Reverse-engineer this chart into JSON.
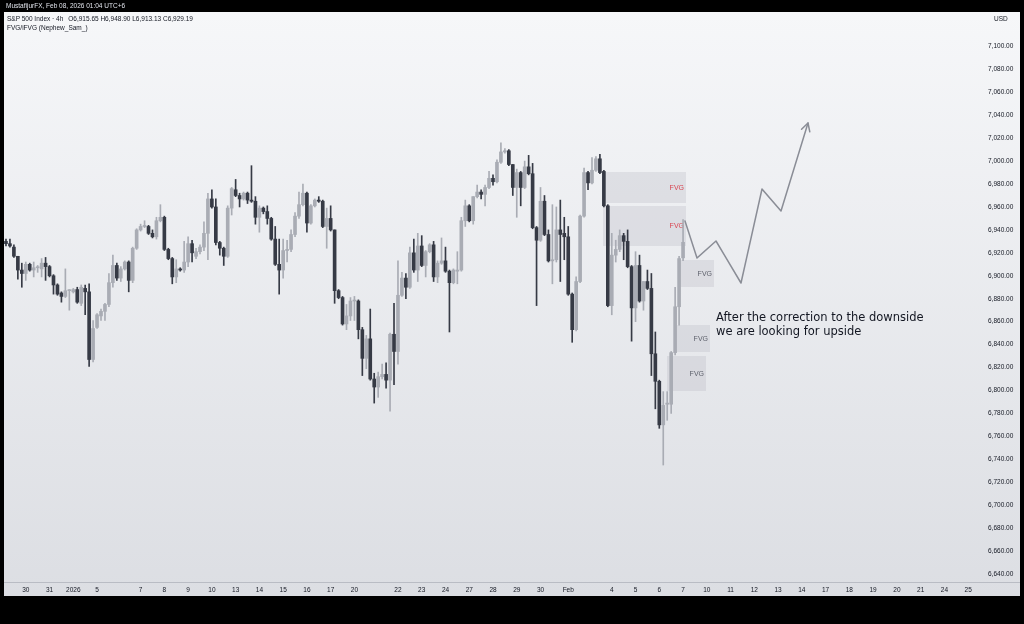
{
  "chart_data": {
    "type": "candlestick",
    "title": "S&P 500 Index · 4h",
    "subtitle": "O6,915.65 H6,948.90 L6,913.13 C6,929.19",
    "ylabel": "USD",
    "annotations": [
      "MustafijurFX, Feb 08, 2026 01:04 UTC+6",
      "FVG/iFVG (Nephew_Sam_)",
      "After the correction to the downside\nwe are looking for upside",
      "FVG",
      "FVG",
      "FVG",
      "FVG",
      "FVG"
    ],
    "categories": [
      null,
      null,
      null,
      null,
      null,
      "30",
      null,
      null,
      null,
      null,
      null,
      "31",
      null,
      null,
      null,
      null,
      null,
      "2026",
      null,
      null,
      null,
      null,
      null,
      "5",
      null,
      null,
      null,
      null,
      null,
      null,
      null,
      null,
      null,
      null,
      "7",
      null,
      null,
      null,
      null,
      null,
      "8",
      null,
      null,
      null,
      null,
      null,
      "9",
      null,
      null,
      null,
      null,
      null,
      "10",
      null,
      null,
      null,
      null,
      null,
      "13",
      null,
      null,
      null,
      null,
      null,
      "14",
      null,
      null,
      null,
      null,
      null,
      "15",
      null,
      null,
      null,
      null,
      null,
      "16",
      null,
      null,
      null,
      null,
      null,
      "17",
      null,
      null,
      null,
      null,
      null,
      "20",
      null,
      null,
      null,
      null,
      null,
      null,
      null,
      null,
      null,
      null,
      "22",
      null,
      null,
      null,
      null,
      null,
      "23",
      null,
      null,
      null,
      null,
      null,
      "24",
      null,
      null,
      null,
      null,
      null,
      "27",
      null,
      null,
      null,
      null,
      null,
      "28",
      null,
      null,
      null,
      null,
      null,
      "29",
      null,
      null,
      null,
      null,
      null,
      "30",
      null,
      null,
      null,
      null,
      null,
      null,
      "Feb",
      null,
      null,
      null,
      null,
      null,
      null,
      null,
      null,
      null,
      null,
      "4",
      null,
      null,
      null,
      null,
      null,
      "5",
      null,
      null,
      null,
      null,
      null,
      "6",
      null,
      null,
      null,
      null,
      null,
      "7",
      null,
      null,
      null,
      null,
      null,
      "10",
      null,
      null,
      null,
      null,
      null,
      "11",
      null,
      null,
      null,
      null,
      null,
      "12",
      null,
      null,
      null,
      null,
      null,
      "13",
      null,
      null,
      null,
      null,
      null,
      "14",
      null,
      null,
      null,
      null,
      null,
      "17",
      null,
      null,
      null,
      null,
      null,
      "18",
      null,
      null,
      null,
      null,
      null,
      "19",
      null,
      null,
      null,
      null,
      null,
      "20",
      null,
      null,
      null,
      null,
      null,
      "21",
      null,
      null,
      null,
      null,
      null,
      "24",
      null,
      null,
      null,
      null,
      null,
      "25",
      null,
      null,
      null
    ],
    "ohlc": [
      [
        6930,
        6932,
        6926,
        6928
      ],
      [
        6928,
        6932,
        6925,
        6926
      ],
      [
        6925,
        6927,
        6916,
        6917
      ],
      [
        6917,
        6917,
        6897,
        6905
      ],
      [
        6905,
        6911,
        6890,
        6902
      ],
      [
        6902,
        6912,
        6896,
        6910
      ],
      [
        6910,
        6911,
        6904,
        6905
      ],
      [
        6905,
        6912,
        6899,
        6907
      ],
      [
        6907,
        6909,
        6903,
        6907
      ],
      [
        6906,
        6915,
        6899,
        6911
      ],
      [
        6911,
        6916,
        6896,
        6908
      ],
      [
        6908,
        6909,
        6899,
        6900
      ],
      [
        6900,
        6901,
        6884,
        6892
      ],
      [
        6892,
        6893,
        6883,
        6884
      ],
      [
        6885,
        6886,
        6877,
        6882
      ],
      [
        6882,
        6906,
        6881,
        6887
      ],
      [
        6887,
        6888,
        6870,
        6887
      ],
      [
        6886,
        6889,
        6885,
        6888
      ],
      [
        6888,
        6890,
        6876,
        6877
      ],
      [
        6876,
        6892,
        6874,
        6890
      ],
      [
        6889,
        6892,
        6866,
        6886
      ],
      [
        6886,
        6893,
        6821,
        6827
      ],
      [
        6827,
        6861,
        6825,
        6854
      ],
      [
        6855,
        6867,
        6854,
        6866
      ],
      [
        6865,
        6871,
        6861,
        6869
      ],
      [
        6869,
        6876,
        6861,
        6875
      ],
      [
        6875,
        6902,
        6873,
        6894
      ],
      [
        6894,
        6918,
        6890,
        6909
      ],
      [
        6909,
        6911,
        6896,
        6898
      ],
      [
        6898,
        6908,
        6895,
        6906
      ],
      [
        6906,
        6913,
        6905,
        6912
      ],
      [
        6912,
        6913,
        6886,
        6896
      ],
      [
        6896,
        6925,
        6894,
        6924
      ],
      [
        6924,
        6941,
        6923,
        6940
      ],
      [
        6940,
        6945,
        6939,
        6943
      ],
      [
        6943,
        6948,
        6942,
        6943
      ],
      [
        6943,
        6944,
        6936,
        6937
      ],
      [
        6937,
        6940,
        6933,
        6934
      ],
      [
        6934,
        6951,
        6932,
        6948
      ],
      [
        6948,
        6962,
        6947,
        6951
      ],
      [
        6951,
        6952,
        6922,
        6923
      ],
      [
        6923,
        6924,
        6914,
        6915
      ],
      [
        6915,
        6916,
        6893,
        6899
      ],
      [
        6899,
        6914,
        6894,
        6906
      ],
      [
        6906,
        6907,
        6904,
        6905
      ],
      [
        6905,
        6930,
        6903,
        6912
      ],
      [
        6912,
        6934,
        6908,
        6928
      ],
      [
        6928,
        6931,
        6912,
        6920
      ],
      [
        6917,
        6924,
        6915,
        6921
      ],
      [
        6921,
        6927,
        6919,
        6925
      ],
      [
        6925,
        6947,
        6922,
        6937
      ],
      [
        6937,
        6972,
        6914,
        6967
      ],
      [
        6967,
        6975,
        6959,
        6960
      ],
      [
        6960,
        6967,
        6927,
        6929
      ],
      [
        6929,
        6930,
        6918,
        6924
      ],
      [
        6924,
        6925,
        6909,
        6917
      ],
      [
        6917,
        6961,
        6916,
        6959
      ],
      [
        6959,
        6977,
        6953,
        6976
      ],
      [
        6975,
        6984,
        6969,
        6970
      ],
      [
        6970,
        6972,
        6960,
        6967
      ],
      [
        6967,
        6973,
        6966,
        6972
      ],
      [
        6972,
        6973,
        6963,
        6966
      ],
      [
        6966,
        6996,
        6964,
        6965
      ],
      [
        6965,
        6969,
        6945,
        6951
      ],
      [
        6951,
        6961,
        6938,
        6959
      ],
      [
        6959,
        6960,
        6954,
        6956
      ],
      [
        6956,
        6961,
        6945,
        6950
      ],
      [
        6950,
        6951,
        6931,
        6932
      ],
      [
        6932,
        6943,
        6909,
        6910
      ],
      [
        6910,
        6932,
        6884,
        6905
      ],
      [
        6905,
        6932,
        6898,
        6922
      ],
      [
        6922,
        6931,
        6912,
        6923
      ],
      [
        6923,
        6940,
        6921,
        6936
      ],
      [
        6936,
        6955,
        6934,
        6952
      ],
      [
        6952,
        6973,
        6950,
        6962
      ],
      [
        6962,
        6980,
        6961,
        6972
      ],
      [
        6972,
        6973,
        6938,
        6946
      ],
      [
        6946,
        6962,
        6945,
        6961
      ],
      [
        6961,
        6967,
        6960,
        6966
      ],
      [
        6966,
        6969,
        6964,
        6965
      ],
      [
        6965,
        6966,
        6942,
        6943
      ],
      [
        6943,
        6959,
        6924,
        6950
      ],
      [
        6950,
        6961,
        6939,
        6940
      ],
      [
        6940,
        6940,
        6876,
        6887
      ],
      [
        6887,
        6888,
        6880,
        6881
      ],
      [
        6881,
        6882,
        6857,
        6858
      ],
      [
        6858,
        6875,
        6853,
        6865
      ],
      [
        6865,
        6881,
        6861,
        6878
      ],
      [
        6878,
        6882,
        6861,
        6878
      ],
      [
        6878,
        6879,
        6845,
        6853
      ],
      [
        6853,
        6855,
        6813,
        6828
      ],
      [
        6828,
        6848,
        6819,
        6845
      ],
      [
        6845,
        6871,
        6809,
        6810
      ],
      [
        6810,
        6815,
        6789,
        6803
      ],
      [
        6803,
        6816,
        6794,
        6812
      ],
      [
        6812,
        6823,
        6810,
        6814
      ],
      [
        6814,
        6824,
        6802,
        6809
      ],
      [
        6809,
        6850,
        6782,
        6849
      ],
      [
        6849,
        6876,
        6805,
        6834
      ],
      [
        6834,
        6913,
        6823,
        6883
      ],
      [
        6883,
        6903,
        6882,
        6898
      ],
      [
        6898,
        6902,
        6880,
        6890
      ],
      [
        6890,
        6925,
        6889,
        6920
      ],
      [
        6920,
        6932,
        6903,
        6905
      ],
      [
        6905,
        6937,
        6895,
        6926
      ],
      [
        6926,
        6935,
        6908,
        6909
      ],
      [
        6909,
        6922,
        6899,
        6921
      ],
      [
        6921,
        6928,
        6920,
        6927
      ],
      [
        6927,
        6930,
        6895,
        6899
      ],
      [
        6899,
        6913,
        6894,
        6911
      ],
      [
        6911,
        6933,
        6910,
        6913
      ],
      [
        6913,
        6925,
        6903,
        6904
      ],
      [
        6904,
        6905,
        6851,
        6894
      ],
      [
        6894,
        6906,
        6893,
        6905
      ],
      [
        6904,
        6921,
        6893,
        6905
      ],
      [
        6905,
        6951,
        6904,
        6948
      ],
      [
        6948,
        6966,
        6943,
        6961
      ],
      [
        6961,
        6962,
        6947,
        6948
      ],
      [
        6948,
        6969,
        6945,
        6969
      ],
      [
        6969,
        6979,
        6968,
        6973
      ],
      [
        6973,
        6975,
        6967,
        6971
      ],
      [
        6971,
        6979,
        6961,
        6977
      ],
      [
        6977,
        6991,
        6976,
        6985
      ],
      [
        6985,
        6988,
        6979,
        6982
      ],
      [
        6982,
        7001,
        6981,
        6999
      ],
      [
        6999,
        7016,
        6998,
        7008
      ],
      [
        7008,
        7011,
        7007,
        7009
      ],
      [
        7009,
        7010,
        6996,
        6997
      ],
      [
        6997,
        6997,
        6970,
        6977
      ],
      [
        6977,
        6993,
        6951,
        6990
      ],
      [
        6990,
        6991,
        6961,
        6977
      ],
      [
        6977,
        7000,
        6976,
        6995
      ],
      [
        6995,
        7005,
        6988,
        6989
      ],
      [
        6989,
        6998,
        6941,
        6942
      ],
      [
        6942,
        6943,
        6874,
        6931
      ],
      [
        6931,
        6977,
        6930,
        6965
      ],
      [
        6965,
        6970,
        6935,
        6936
      ],
      [
        6936,
        6940,
        6912,
        6913
      ],
      [
        6913,
        6962,
        6893,
        6914
      ],
      [
        6914,
        6960,
        6912,
        6940
      ],
      [
        6940,
        6966,
        6895,
        6936
      ],
      [
        6937,
        6951,
        6914,
        6934
      ],
      [
        6934,
        6943,
        6883,
        6884
      ],
      [
        6884,
        6885,
        6842,
        6853
      ],
      [
        6853,
        6899,
        6852,
        6895
      ],
      [
        6895,
        6953,
        6894,
        6952
      ],
      [
        6952,
        6994,
        6951,
        6990
      ],
      [
        6990,
        6991,
        6975,
        6981
      ],
      [
        6981,
        7003,
        6980,
        6992
      ],
      [
        6992,
        7004,
        6991,
        7002
      ],
      [
        7002,
        7006,
        6989,
        6990
      ],
      [
        6991,
        6992,
        6960,
        6961
      ],
      [
        6961,
        6962,
        6873,
        6874
      ],
      [
        6874,
        6937,
        6866,
        6918
      ],
      [
        6918,
        6931,
        6912,
        6923
      ],
      [
        6923,
        6940,
        6921,
        6935
      ],
      [
        6935,
        6937,
        6914,
        6930
      ],
      [
        6930,
        6940,
        6907,
        6908
      ],
      [
        6908,
        6909,
        6843,
        6872
      ],
      [
        6872,
        6921,
        6860,
        6909
      ],
      [
        6909,
        6918,
        6877,
        6878
      ],
      [
        6878,
        6895,
        6870,
        6895
      ],
      [
        6895,
        6905,
        6888,
        6889
      ],
      [
        6889,
        6902,
        6813,
        6832
      ],
      [
        6832,
        6851,
        6784,
        6808
      ],
      [
        6808,
        6809,
        6767,
        6770
      ],
      [
        6770,
        6799,
        6735,
        6787
      ],
      [
        6788,
        6799,
        6774,
        6789
      ],
      [
        6788,
        6834,
        6780,
        6833
      ],
      [
        6833,
        6890,
        6831,
        6873
      ],
      [
        6873,
        6917,
        6857,
        6915
      ],
      [
        6915.65,
        6948.9,
        6913.13,
        6929.19
      ],
      null,
      null,
      null,
      null,
      null,
      null,
      null,
      null,
      null,
      null,
      null,
      null,
      null,
      null,
      null,
      null,
      null,
      null,
      null,
      null,
      null,
      null,
      null,
      null,
      null,
      null,
      null,
      null,
      null,
      null,
      null,
      null,
      null,
      null,
      null,
      null,
      null,
      null,
      null,
      null,
      null,
      null,
      null,
      null,
      null,
      null,
      null,
      null,
      null,
      null,
      null,
      null,
      null,
      null,
      null,
      null,
      null,
      null,
      null,
      null,
      null,
      null,
      null,
      null,
      null,
      null,
      null,
      null,
      null,
      null,
      null,
      null,
      null,
      null,
      null
    ],
    "colors": [
      "#363a45",
      "#363a45",
      "#363a45",
      "#363a45",
      "#363a45",
      "#a9acb4",
      "#363a45",
      "#a9acb4",
      "#a9acb4",
      "#a9acb4",
      "#363a45",
      "#363a45",
      "#363a45",
      "#363a45",
      "#363a45",
      "#a9acb4",
      "#a9acb4",
      "#a9acb4",
      "#363a45",
      "#a9acb4",
      "#363a45",
      "#363a45",
      "#a9acb4",
      "#a9acb4",
      "#a9acb4",
      "#a9acb4",
      "#a9acb4",
      "#a9acb4",
      "#363a45",
      "#a9acb4",
      "#a9acb4",
      "#363a45",
      "#a9acb4",
      "#a9acb4",
      "#a9acb4",
      "#a9acb4",
      "#363a45",
      "#363a45",
      "#a9acb4",
      "#a9acb4",
      "#363a45",
      "#363a45",
      "#363a45",
      "#a9acb4",
      "#363a45",
      "#a9acb4",
      "#a9acb4",
      "#363a45",
      "#a9acb4",
      "#a9acb4",
      "#a9acb4",
      "#a9acb4",
      "#363a45",
      "#363a45",
      "#363a45",
      "#363a45",
      "#a9acb4",
      "#a9acb4",
      "#363a45",
      "#363a45",
      "#a9acb4",
      "#363a45",
      "#363a45",
      "#363a45",
      "#a9acb4",
      "#363a45",
      "#363a45",
      "#363a45",
      "#363a45",
      "#363a45",
      "#a9acb4",
      "#a9acb4",
      "#a9acb4",
      "#a9acb4",
      "#a9acb4",
      "#a9acb4",
      "#363a45",
      "#a9acb4",
      "#a9acb4",
      "#363a45",
      "#363a45",
      "#a9acb4",
      "#363a45",
      "#363a45",
      "#363a45",
      "#363a45",
      "#a9acb4",
      "#a9acb4",
      "#a9acb4",
      "#363a45",
      "#363a45",
      "#a9acb4",
      "#363a45",
      "#363a45",
      "#a9acb4",
      "#a9acb4",
      "#363a45",
      "#a9acb4",
      "#363a45",
      "#a9acb4",
      "#a9acb4",
      "#363a45",
      "#a9acb4",
      "#363a45",
      "#a9acb4",
      "#363a45",
      "#a9acb4",
      "#a9acb4",
      "#363a45",
      "#a9acb4",
      "#a9acb4",
      "#363a45",
      "#363a45",
      "#a9acb4",
      "#a9acb4",
      "#a9acb4",
      "#a9acb4",
      "#363a45",
      "#a9acb4",
      "#a9acb4",
      "#363a45",
      "#a9acb4",
      "#a9acb4",
      "#363a45",
      "#a9acb4",
      "#a9acb4",
      "#a9acb4",
      "#363a45",
      "#363a45",
      "#a9acb4",
      "#363a45",
      "#a9acb4",
      "#363a45",
      "#363a45",
      "#363a45",
      "#a9acb4",
      "#363a45",
      "#363a45",
      "#a9acb4",
      "#a9acb4",
      "#363a45",
      "#363a45",
      "#363a45",
      "#363a45",
      "#a9acb4",
      "#a9acb4",
      "#a9acb4",
      "#363a45",
      "#a9acb4",
      "#a9acb4",
      "#363a45",
      "#363a45",
      "#363a45",
      "#a9acb4",
      "#a9acb4",
      "#a9acb4",
      "#363a45",
      "#363a45",
      "#363a45",
      "#a9acb4",
      "#363a45",
      "#a9acb4",
      "#363a45",
      "#363a45",
      "#363a45",
      "#363a45",
      "#a9acb4",
      "#a9acb4",
      "#a9acb4",
      "#a9acb4",
      "#a9acb4",
      "#a9acb4",
      null,
      null,
      null,
      null,
      null,
      null,
      null,
      null,
      null,
      null,
      null,
      null,
      null,
      null,
      null,
      null,
      null,
      null,
      null,
      null,
      null,
      null,
      null,
      null,
      null,
      null,
      null,
      null,
      null,
      null,
      null,
      null,
      null,
      null,
      null,
      null,
      null,
      null,
      null,
      null,
      null,
      null,
      null,
      null,
      null,
      null,
      null,
      null,
      null,
      null,
      null,
      null,
      null,
      null,
      null,
      null,
      null,
      null,
      null,
      null,
      null,
      null,
      null,
      null,
      null,
      null,
      null,
      null,
      null,
      null,
      null,
      null,
      null,
      null,
      null
    ],
    "ylim": [
      6633,
      7130
    ],
    "yticks": [
      {
        "value": 6640,
        "label": "6,640.00"
      },
      {
        "value": 6660,
        "label": "6,660.00"
      },
      {
        "value": 6680,
        "label": "6,680.00"
      },
      {
        "value": 6700,
        "label": "6,700.00"
      },
      {
        "value": 6720,
        "label": "6,720.00"
      },
      {
        "value": 6740,
        "label": "6,740.00"
      },
      {
        "value": 6760,
        "label": "6,760.00"
      },
      {
        "value": 6780,
        "label": "6,780.00"
      },
      {
        "value": 6800,
        "label": "6,800.00"
      },
      {
        "value": 6820,
        "label": "6,820.00"
      },
      {
        "value": 6840,
        "label": "6,840.00"
      },
      {
        "value": 6860,
        "label": "6,860.00"
      },
      {
        "value": 6880,
        "label": "6,880.00"
      },
      {
        "value": 6900,
        "label": "6,900.00"
      },
      {
        "value": 6920,
        "label": "6,920.00"
      },
      {
        "value": 6940,
        "label": "6,940.00"
      },
      {
        "value": 6960,
        "label": "6,960.00"
      },
      {
        "value": 6980,
        "label": "6,980.00"
      },
      {
        "value": 7000,
        "label": "7,000.00"
      },
      {
        "value": 7020,
        "label": "7,020.00"
      },
      {
        "value": 7040,
        "label": "7,040.00"
      },
      {
        "value": 7060,
        "label": "7,060.00"
      },
      {
        "value": 7080,
        "label": "7,080.00"
      },
      {
        "value": 7100,
        "label": "7,100.00"
      }
    ]
  }
}
